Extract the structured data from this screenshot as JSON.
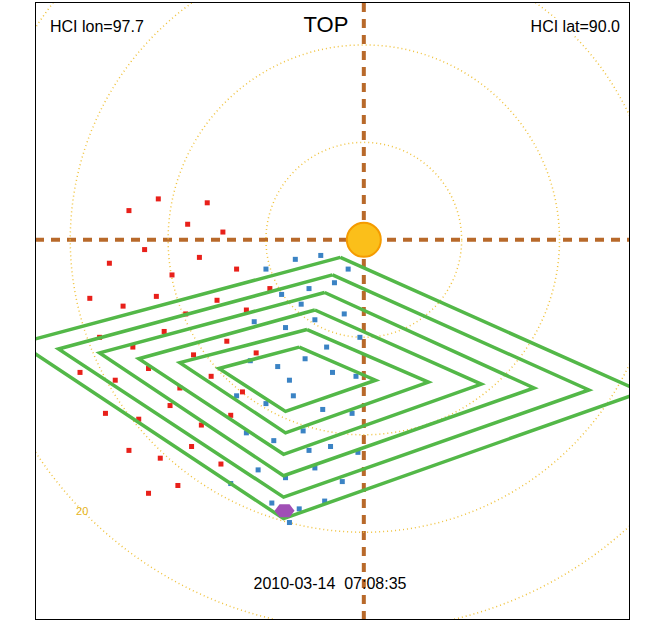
{
  "chart_data": {
    "type": "scatter",
    "title": "TOP",
    "annotations": [
      "HCI lon=97.7",
      "HCI lat=90.0",
      "2010-03-14  07:08:35"
    ],
    "xlim": [
      -16.8,
      13.6
    ],
    "ylim": [
      -19.5,
      12.2
    ],
    "tick_labels": false,
    "axes_lines": {
      "x": 0,
      "y": 0,
      "color": "#b8692a",
      "line_style": "dashed"
    },
    "rings": {
      "radii": [
        5,
        10,
        15,
        20
      ],
      "color": "#f0c23c",
      "line_style": "dotted"
    },
    "sun": {
      "x": 0,
      "y": 0,
      "color": "#fbbf1a"
    },
    "earth": {
      "x": -4.05,
      "y": -13.9,
      "color": "#a04fb5",
      "marker": "hexagon"
    },
    "series": [
      {
        "type": "scatter",
        "color": "#e8201a",
        "marker": "square",
        "values": [
          [
            -12,
            1.5
          ],
          [
            -10.5,
            2.1
          ],
          [
            -9,
            0.8
          ],
          [
            -8,
            1.9
          ],
          [
            -7.2,
            0.4
          ],
          [
            -11.2,
            -0.5
          ],
          [
            -13,
            -1.2
          ],
          [
            -9.8,
            -1.8
          ],
          [
            -8.4,
            -0.9
          ],
          [
            -6.5,
            -1.5
          ],
          [
            -14,
            -3
          ],
          [
            -12.3,
            -3.4
          ],
          [
            -10.6,
            -2.9
          ],
          [
            -9.1,
            -3.8
          ],
          [
            -7.5,
            -3.1
          ],
          [
            -6,
            -3.6
          ],
          [
            -13.5,
            -5
          ],
          [
            -11.8,
            -5.5
          ],
          [
            -10.2,
            -4.7
          ],
          [
            -8.7,
            -5.9
          ],
          [
            -7,
            -5.2
          ],
          [
            -5.5,
            -5.8
          ],
          [
            -14.5,
            -6.8
          ],
          [
            -12.7,
            -7.2
          ],
          [
            -11,
            -6.6
          ],
          [
            -9.4,
            -7.6
          ],
          [
            -7.8,
            -7
          ],
          [
            -6.2,
            -7.8
          ],
          [
            -13.2,
            -8.9
          ],
          [
            -11.5,
            -9.2
          ],
          [
            -9.9,
            -8.5
          ],
          [
            -8.3,
            -9.5
          ],
          [
            -6.8,
            -9
          ],
          [
            -12,
            -10.8
          ],
          [
            -10.4,
            -11.2
          ],
          [
            -8.8,
            -10.6
          ],
          [
            -7.3,
            -11.5
          ],
          [
            -9.5,
            -12.6
          ],
          [
            -11,
            -13
          ],
          [
            -4.8,
            -2.5
          ]
        ]
      },
      {
        "type": "scatter",
        "color": "#3b83c4",
        "marker": "square",
        "values": [
          [
            -5,
            -1.5
          ],
          [
            -3.5,
            -1
          ],
          [
            -2.2,
            -0.8
          ],
          [
            -4.2,
            -2.8
          ],
          [
            -2.8,
            -2.5
          ],
          [
            -1.5,
            -2.2
          ],
          [
            -5.6,
            -4.2
          ],
          [
            -4,
            -4.5
          ],
          [
            -2.5,
            -4.1
          ],
          [
            -1,
            -3.8
          ],
          [
            -0.2,
            -5
          ],
          [
            -5.8,
            -6.2
          ],
          [
            -4.4,
            -6.5
          ],
          [
            -3,
            -6.1
          ],
          [
            -1.6,
            -6.8
          ],
          [
            -0.4,
            -7
          ],
          [
            -6.5,
            -8
          ],
          [
            -5,
            -8.4
          ],
          [
            -3.6,
            -8
          ],
          [
            -2.1,
            -8.7
          ],
          [
            -0.6,
            -8.9
          ],
          [
            -6,
            -9.9
          ],
          [
            -4.6,
            -10.3
          ],
          [
            -3.1,
            -9.8
          ],
          [
            -1.7,
            -10.6
          ],
          [
            -0.3,
            -10.9
          ],
          [
            -5.4,
            -11.8
          ],
          [
            -4,
            -12.2
          ],
          [
            -2.5,
            -11.7
          ],
          [
            -1.1,
            -12.4
          ],
          [
            -4.7,
            -13.5
          ],
          [
            -3.3,
            -13.8
          ],
          [
            -2,
            -13.4
          ],
          [
            -3.8,
            -14.5
          ],
          [
            -6.8,
            -12.5
          ],
          [
            -0.8,
            -1.5
          ],
          [
            -3.2,
            -3.3
          ],
          [
            -1.9,
            -5.5
          ],
          [
            -3.8,
            -7.2
          ],
          [
            -2.8,
            -10.8
          ]
        ]
      },
      {
        "type": "line",
        "color": "#53b848",
        "values": [
          [
            -1.2,
            -0.9
          ],
          [
            14.2,
            -7.8
          ],
          [
            -4.1,
            -14.3
          ],
          [
            -17.6,
            -5.3
          ]
        ]
      },
      {
        "type": "line",
        "color": "#53b848",
        "values": [
          [
            -1.6,
            -1.8
          ],
          [
            11.5,
            -7.7
          ],
          [
            -4.1,
            -13.2
          ],
          [
            -15.6,
            -5.6
          ]
        ]
      },
      {
        "type": "line",
        "color": "#53b848",
        "values": [
          [
            -2.0,
            -2.7
          ],
          [
            8.7,
            -7.6
          ],
          [
            -4.1,
            -12.1
          ],
          [
            -13.5,
            -5.8
          ]
        ]
      },
      {
        "type": "line",
        "color": "#53b848",
        "values": [
          [
            -2.5,
            -3.6
          ],
          [
            6.0,
            -7.4
          ],
          [
            -4.1,
            -11.0
          ],
          [
            -11.5,
            -6.1
          ]
        ]
      },
      {
        "type": "line",
        "color": "#53b848",
        "values": [
          [
            -2.9,
            -4.6
          ],
          [
            3.3,
            -7.3
          ],
          [
            -4.0,
            -9.9
          ],
          [
            -9.4,
            -6.3
          ]
        ]
      },
      {
        "type": "line",
        "color": "#53b848",
        "values": [
          [
            -3.3,
            -5.5
          ],
          [
            0.6,
            -7.2
          ],
          [
            -4.0,
            -8.8
          ],
          [
            -7.4,
            -6.6
          ]
        ]
      }
    ]
  }
}
